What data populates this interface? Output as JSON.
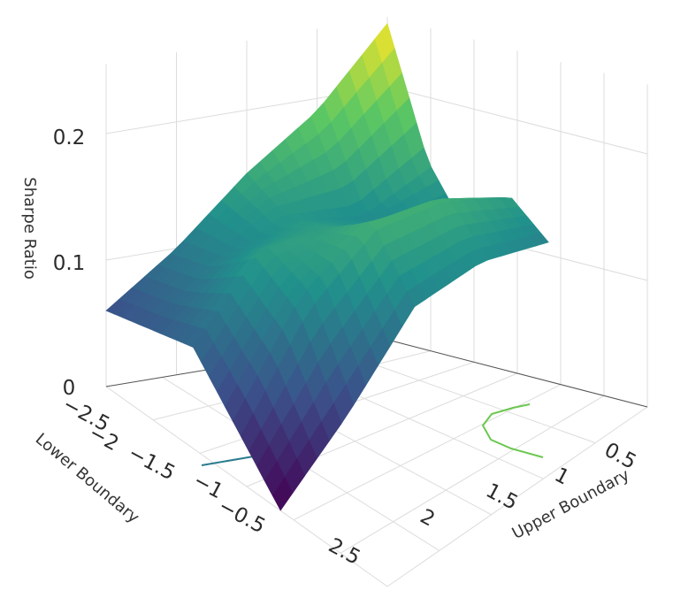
{
  "chart_data": {
    "type": "surface",
    "title": "",
    "x_axis": {
      "label": "Upper Boundary",
      "ticks": [
        "0.5",
        "1",
        "1.5",
        "2"
      ],
      "range": [
        0.25,
        2.25
      ]
    },
    "y_axis": {
      "label": "Lower Boundary",
      "ticks": [
        "−2.5",
        "−2",
        "−1.5",
        "−1",
        "−0.5",
        "2.5"
      ],
      "range": [
        -2.75,
        2.75
      ]
    },
    "z_axis": {
      "label": "Sharpe Ratio",
      "ticks": [
        "0",
        "0.1",
        "0.2"
      ],
      "range": [
        0,
        0.25
      ]
    },
    "colorscale": "viridis",
    "colors": [
      "#440154",
      "#3b528b",
      "#21918c",
      "#5ec962",
      "#fde725"
    ],
    "grid": true,
    "series": [
      {
        "values_note_x_upper": [
          0.25,
          0.75,
          1.25,
          1.75,
          2.25
        ]
      }
    ],
    "surface": {
      "x": [
        0.25,
        0.75,
        1.25,
        1.75,
        2.25
      ],
      "y": [
        -2.75,
        -1.5,
        -0.25,
        1.0,
        2.25
      ],
      "z": [
        [
          0.25,
          0.15,
          0.1,
          0.14,
          0.11
        ],
        [
          0.19,
          0.12,
          0.12,
          0.16,
          0.12
        ],
        [
          0.15,
          0.13,
          0.14,
          0.16,
          0.11
        ],
        [
          0.1,
          0.11,
          0.14,
          0.12,
          0.05
        ],
        [
          0.06,
          0.07,
          0.08,
          0.04,
          0.0
        ]
      ]
    },
    "contours": [
      {
        "name": "",
        "color": "#2a7b8e"
      },
      {
        "name": "",
        "color": "#6cc84f"
      }
    ]
  }
}
